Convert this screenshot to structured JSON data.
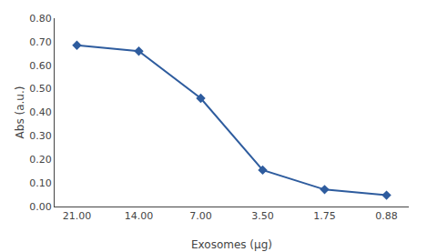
{
  "chart_data": {
    "type": "line",
    "categories": [
      "21.00",
      "14.00",
      "7.00",
      "3.50",
      "1.75",
      "0.88"
    ],
    "values": [
      0.685,
      0.66,
      0.46,
      0.155,
      0.072,
      0.048
    ],
    "xlabel": "Exosomes (μg)",
    "ylabel": "Abs (a.u.)",
    "ylim": [
      0.0,
      0.8
    ],
    "yticks": [
      {
        "value": 0.0,
        "label": "0.00"
      },
      {
        "value": 0.1,
        "label": "0.10"
      },
      {
        "value": 0.2,
        "label": "0.20"
      },
      {
        "value": 0.3,
        "label": "0.30"
      },
      {
        "value": 0.4,
        "label": "0.40"
      },
      {
        "value": 0.5,
        "label": "0.50"
      },
      {
        "value": 0.6,
        "label": "0.60"
      },
      {
        "value": 0.7,
        "label": "0.70"
      },
      {
        "value": 0.8,
        "label": "0.80"
      }
    ],
    "color": "#2E5C9E",
    "marker": "diamond",
    "line_style": "solid",
    "grid": false
  }
}
